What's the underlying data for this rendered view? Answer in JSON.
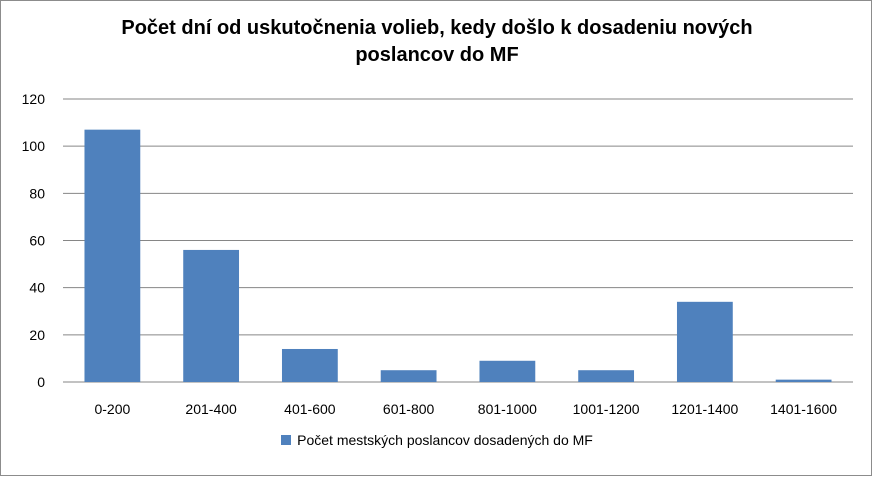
{
  "chart_data": {
    "type": "bar",
    "title": "Počet dní od uskutočnenia volieb, kedy došlo k dosadeniu nových poslancov do MF",
    "xlabel": "",
    "ylabel": "",
    "categories": [
      "0-200",
      "201-400",
      "401-600",
      "601-800",
      "801-1000",
      "1001-1200",
      "1201-1400",
      "1401-1600"
    ],
    "series": [
      {
        "name": "Počet mestských poslancov dosadených do MF",
        "values": [
          107,
          56,
          14,
          5,
          9,
          5,
          34,
          1
        ],
        "color": "#4f81bd"
      }
    ],
    "ylim": [
      0,
      120
    ],
    "yticks": [
      0,
      20,
      40,
      60,
      80,
      100,
      120
    ],
    "grid": true,
    "legend_position": "bottom"
  }
}
